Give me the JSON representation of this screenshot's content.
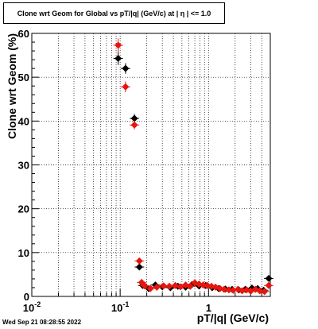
{
  "title": "Clone wrt Geom for Global vs pT/|q| (GeV/c) at |  η | <= 1.0",
  "timestamp": "Wed Sep 21 08:28:55 2022",
  "chart_data": {
    "type": "scatter",
    "xlabel": "pT/|q| (GeV/c)",
    "ylabel": "Clone wrt Geom (%)",
    "xscale": "log",
    "xlim": [
      0.01,
      5
    ],
    "ylim": [
      0,
      60
    ],
    "grid": true,
    "x_tick_labels": [
      "10^-2",
      "10^-1",
      "1"
    ],
    "y_tick_labels": [
      "0",
      "10",
      "20",
      "30",
      "40",
      "50",
      "60"
    ],
    "series": [
      {
        "color": "#000000",
        "marker": "diamond",
        "x": [
          0.095,
          0.115,
          0.145,
          0.165,
          0.18,
          0.21,
          0.25,
          0.3,
          0.37,
          0.45,
          0.55,
          0.65,
          0.78,
          0.93,
          1.1,
          1.3,
          1.55,
          1.85,
          2.2,
          2.6,
          3.1,
          3.6,
          4.2,
          4.8
        ],
        "y": [
          54.3,
          52.0,
          40.6,
          6.7,
          2.5,
          1.8,
          2.6,
          2.2,
          2.0,
          2.3,
          2.1,
          2.7,
          2.4,
          2.5,
          2.0,
          1.8,
          1.7,
          1.6,
          1.5,
          1.6,
          1.9,
          1.8,
          1.4,
          4.1
        ],
        "yerr": [
          1.5,
          1.2,
          1.0,
          0.4,
          0.3,
          0.3,
          0.3,
          0.3,
          0.3,
          0.3,
          0.3,
          0.3,
          0.3,
          0.3,
          0.3,
          0.3,
          0.3,
          0.3,
          0.3,
          0.3,
          0.3,
          0.3,
          0.3,
          0.6
        ]
      },
      {
        "color": "#e8150e",
        "marker": "diamond",
        "x": [
          0.095,
          0.115,
          0.145,
          0.165,
          0.175,
          0.19,
          0.22,
          0.26,
          0.31,
          0.36,
          0.42,
          0.48,
          0.55,
          0.62,
          0.7,
          0.78,
          0.87,
          0.97,
          1.08,
          1.2,
          1.35,
          1.5,
          1.7,
          1.9,
          2.15,
          2.4,
          2.7,
          3.0,
          3.4,
          3.8,
          4.3,
          4.8
        ],
        "y": [
          57.3,
          47.8,
          39.1,
          8.1,
          3.2,
          2.4,
          1.8,
          2.1,
          2.4,
          2.3,
          2.5,
          2.2,
          2.6,
          2.3,
          3.1,
          2.8,
          2.6,
          2.5,
          2.3,
          2.1,
          1.8,
          1.6,
          1.5,
          1.4,
          1.6,
          1.3,
          1.5,
          1.2,
          1.6,
          1.3,
          1.1,
          2.5
        ],
        "yerr": [
          1.5,
          1.2,
          1.0,
          0.4,
          0.3,
          0.3,
          0.3,
          0.3,
          0.3,
          0.3,
          0.3,
          0.3,
          0.3,
          0.3,
          0.3,
          0.3,
          0.3,
          0.3,
          0.3,
          0.3,
          0.3,
          0.3,
          0.3,
          0.3,
          0.3,
          0.3,
          0.3,
          0.3,
          0.3,
          0.3,
          0.3,
          0.5
        ]
      }
    ]
  }
}
